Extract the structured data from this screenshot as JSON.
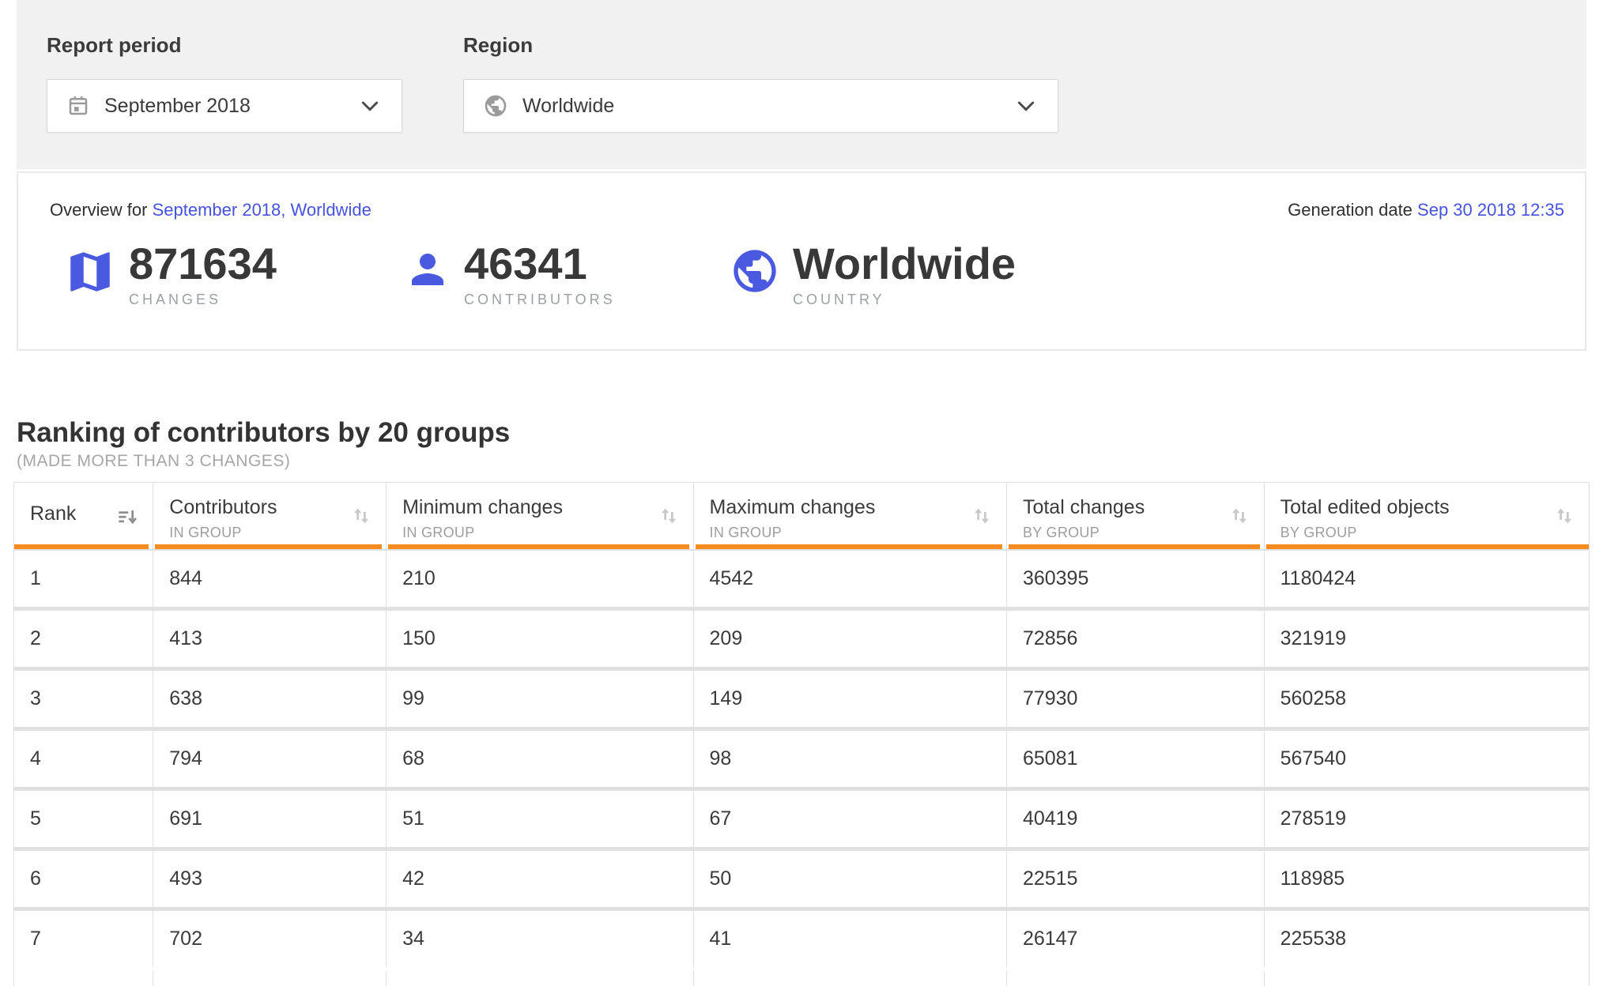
{
  "filters": {
    "report_period": {
      "label": "Report period",
      "value": "September 2018"
    },
    "region": {
      "label": "Region",
      "value": "Worldwide"
    }
  },
  "overview": {
    "prefix": "Overview for",
    "link": "September 2018, Worldwide",
    "generation_label": "Generation date",
    "generation_value": "Sep 30 2018 12:35",
    "stats": [
      {
        "icon": "map-icon",
        "value": "871634",
        "label": "CHANGES"
      },
      {
        "icon": "person-icon",
        "value": "46341",
        "label": "CONTRIBUTORS"
      },
      {
        "icon": "globe-icon",
        "value": "Worldwide",
        "label": "COUNTRY"
      }
    ]
  },
  "ranking": {
    "title": "Ranking of contributors by 20 groups",
    "subtitle": "(MADE MORE THAN 3 CHANGES)",
    "table": {
      "columns": [
        {
          "label": "Rank",
          "sublabel": "",
          "sort_icon": "sort-amount-desc-icon"
        },
        {
          "label": "Contributors",
          "sublabel": "IN GROUP",
          "sort_icon": "sort-updown-icon"
        },
        {
          "label": "Minimum changes",
          "sublabel": "IN GROUP",
          "sort_icon": "sort-updown-icon"
        },
        {
          "label": "Maximum changes",
          "sublabel": "IN GROUP",
          "sort_icon": "sort-updown-icon"
        },
        {
          "label": "Total changes",
          "sublabel": "BY GROUP",
          "sort_icon": "sort-updown-icon"
        },
        {
          "label": "Total edited objects",
          "sublabel": "BY GROUP",
          "sort_icon": "sort-updown-icon"
        }
      ],
      "rows": [
        [
          "1",
          "844",
          "210",
          "4542",
          "360395",
          "1180424"
        ],
        [
          "2",
          "413",
          "150",
          "209",
          "72856",
          "321919"
        ],
        [
          "3",
          "638",
          "99",
          "149",
          "77930",
          "560258"
        ],
        [
          "4",
          "794",
          "68",
          "98",
          "65081",
          "567540"
        ],
        [
          "5",
          "691",
          "51",
          "67",
          "40419",
          "278519"
        ],
        [
          "6",
          "493",
          "42",
          "50",
          "22515",
          "118985"
        ],
        [
          "7",
          "702",
          "34",
          "41",
          "26147",
          "225538"
        ]
      ]
    }
  },
  "colors": {
    "accent_orange": "#f68b1f",
    "link_blue": "#4453e0",
    "icon_blue": "#4a5ae0",
    "filter_bar_bg": "#f1f1f1",
    "border_gray": "#e0e0e0",
    "text_dark": "#3b3b3b",
    "text_muted": "#9e9e9e"
  }
}
